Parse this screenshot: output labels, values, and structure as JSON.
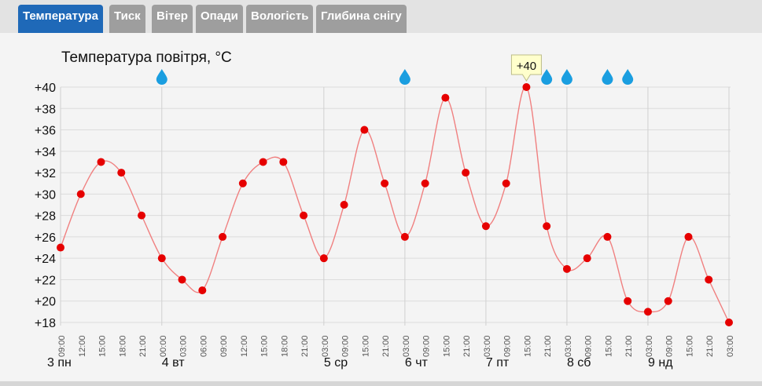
{
  "tabs": [
    {
      "label": "Температура",
      "active": true
    },
    {
      "label": "Тиск",
      "active": false
    },
    {
      "label": "Вітер",
      "active": false
    },
    {
      "label": "Опади",
      "active": false
    },
    {
      "label": "Вологість",
      "active": false
    },
    {
      "label": "Глибина снігу",
      "active": false
    }
  ],
  "colors": {
    "tab_active": "#1f69b8",
    "tab_inactive": "#9e9e9e",
    "line": "#f08080",
    "point": "#e60000",
    "rain_icon": "#1a9ee0",
    "tooltip_bg": "#ffffcc"
  },
  "chart_data": {
    "type": "line",
    "title": "Температура повітря, °C",
    "ylim": [
      18,
      40
    ],
    "y_ticks": [
      "+18",
      "+20",
      "+22",
      "+24",
      "+26",
      "+28",
      "+30",
      "+32",
      "+34",
      "+36",
      "+38",
      "+40"
    ],
    "x_tick_labels": [
      "09:00",
      "12:00",
      "15:00",
      "18:00",
      "21:00",
      "00:00",
      "03:00",
      "06:00",
      "09:00",
      "12:00",
      "15:00",
      "18:00",
      "21:00",
      "03:00",
      "09:00",
      "15:00",
      "21:00",
      "03:00",
      "09:00",
      "15:00",
      "21:00",
      "03:00",
      "09:00",
      "15:00",
      "21:00",
      "03:00",
      "09:00",
      "15:00",
      "21:00",
      "03:00",
      "09:00",
      "15:00",
      "21:00",
      "03:00"
    ],
    "day_labels": [
      "3 пн",
      "4 вт",
      "5 ср",
      "6 чт",
      "7 пт",
      "8 сб",
      "9 нд"
    ],
    "series": [
      {
        "values": [
          25,
          30,
          33,
          32,
          28,
          24,
          22,
          21,
          26,
          31,
          33,
          33,
          28,
          24,
          29,
          36,
          31,
          26,
          31,
          39,
          32,
          27,
          31,
          40,
          27,
          23,
          24,
          26,
          20,
          19,
          20,
          26,
          22,
          18
        ]
      }
    ],
    "rain_markers": [
      "00:00",
      "03:00",
      "21:00",
      "03:00",
      "15:00",
      "21:00"
    ],
    "tooltip": "+40",
    "grid": true
  }
}
